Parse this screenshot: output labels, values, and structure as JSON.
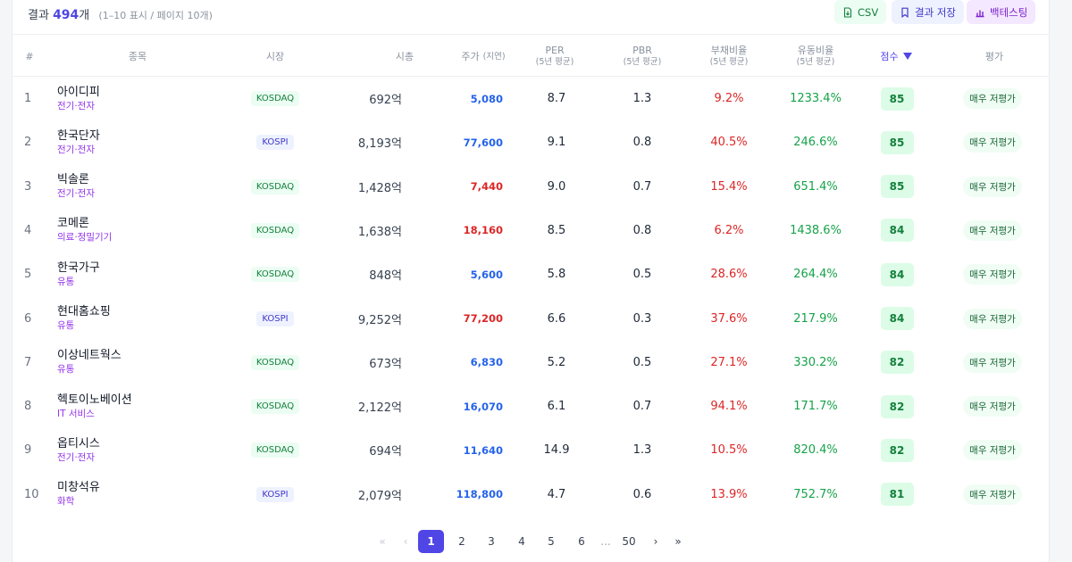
{
  "summary": {
    "prefix": "결과",
    "count": "494",
    "unit": "개",
    "sub": "(1–10 표시 / 페이지 10개)"
  },
  "toolbar": {
    "csv": "CSV",
    "save": "결과 저장",
    "backtest": "백테스팅"
  },
  "headers": {
    "rank": "#",
    "name": "종목",
    "market": "시장",
    "mcap": "시총",
    "price": "주가",
    "price_note": "(지연)",
    "per": "PER",
    "per_sub": "(5년 평균)",
    "pbr": "PBR",
    "pbr_sub": "(5년 평균)",
    "debt": "부채비율",
    "debt_sub": "(5년 평균)",
    "current": "유동비율",
    "current_sub": "(5년 평균)",
    "score": "점수",
    "eval": "평가"
  },
  "colors": {
    "accent": "#4f46e5",
    "up": "#dc2626",
    "down": "#2563eb",
    "good": "#16a34a",
    "sector": "#9333ea"
  },
  "rows": [
    {
      "rank": "1",
      "name": "아이디피",
      "sector": "전기·전자",
      "market": "KOSDAQ",
      "mcap": "692억",
      "price": "5,080",
      "dir": "down",
      "per": "8.7",
      "pbr": "1.3",
      "debt": "9.2%",
      "current": "1233.4%",
      "score": "85",
      "eval": "매우 저평가"
    },
    {
      "rank": "2",
      "name": "한국단자",
      "sector": "전기·전자",
      "market": "KOSPI",
      "mcap": "8,193억",
      "price": "77,600",
      "dir": "down",
      "per": "9.1",
      "pbr": "0.8",
      "debt": "40.5%",
      "current": "246.6%",
      "score": "85",
      "eval": "매우 저평가"
    },
    {
      "rank": "3",
      "name": "빅솔론",
      "sector": "전기·전자",
      "market": "KOSDAQ",
      "mcap": "1,428억",
      "price": "7,440",
      "dir": "up",
      "per": "9.0",
      "pbr": "0.7",
      "debt": "15.4%",
      "current": "651.4%",
      "score": "85",
      "eval": "매우 저평가"
    },
    {
      "rank": "4",
      "name": "코메론",
      "sector": "의료·정밀기기",
      "market": "KOSDAQ",
      "mcap": "1,638억",
      "price": "18,160",
      "dir": "up",
      "per": "8.5",
      "pbr": "0.8",
      "debt": "6.2%",
      "current": "1438.6%",
      "score": "84",
      "eval": "매우 저평가"
    },
    {
      "rank": "5",
      "name": "한국가구",
      "sector": "유통",
      "market": "KOSDAQ",
      "mcap": "848억",
      "price": "5,600",
      "dir": "down",
      "per": "5.8",
      "pbr": "0.5",
      "debt": "28.6%",
      "current": "264.4%",
      "score": "84",
      "eval": "매우 저평가"
    },
    {
      "rank": "6",
      "name": "현대홈쇼핑",
      "sector": "유통",
      "market": "KOSPI",
      "mcap": "9,252억",
      "price": "77,200",
      "dir": "up",
      "per": "6.6",
      "pbr": "0.3",
      "debt": "37.6%",
      "current": "217.9%",
      "score": "84",
      "eval": "매우 저평가"
    },
    {
      "rank": "7",
      "name": "이상네트웍스",
      "sector": "유통",
      "market": "KOSDAQ",
      "mcap": "673억",
      "price": "6,830",
      "dir": "down",
      "per": "5.2",
      "pbr": "0.5",
      "debt": "27.1%",
      "current": "330.2%",
      "score": "82",
      "eval": "매우 저평가"
    },
    {
      "rank": "8",
      "name": "헥토이노베이션",
      "sector": "IT 서비스",
      "market": "KOSDAQ",
      "mcap": "2,122억",
      "price": "16,070",
      "dir": "down",
      "per": "6.1",
      "pbr": "0.7",
      "debt": "94.1%",
      "current": "171.7%",
      "score": "82",
      "eval": "매우 저평가"
    },
    {
      "rank": "9",
      "name": "옵티시스",
      "sector": "전기·전자",
      "market": "KOSDAQ",
      "mcap": "694억",
      "price": "11,640",
      "dir": "down",
      "per": "14.9",
      "pbr": "1.3",
      "debt": "10.5%",
      "current": "820.4%",
      "score": "82",
      "eval": "매우 저평가"
    },
    {
      "rank": "10",
      "name": "미창석유",
      "sector": "화학",
      "market": "KOSPI",
      "mcap": "2,079억",
      "price": "118,800",
      "dir": "down",
      "per": "4.7",
      "pbr": "0.6",
      "debt": "13.9%",
      "current": "752.7%",
      "score": "81",
      "eval": "매우 저평가"
    }
  ],
  "pagination": {
    "first": "«",
    "prev": "‹",
    "pages": [
      "1",
      "2",
      "3",
      "4",
      "5",
      "6"
    ],
    "current": "1",
    "ellipsis": "...",
    "last_page": "50",
    "next": "›",
    "last": "»"
  }
}
